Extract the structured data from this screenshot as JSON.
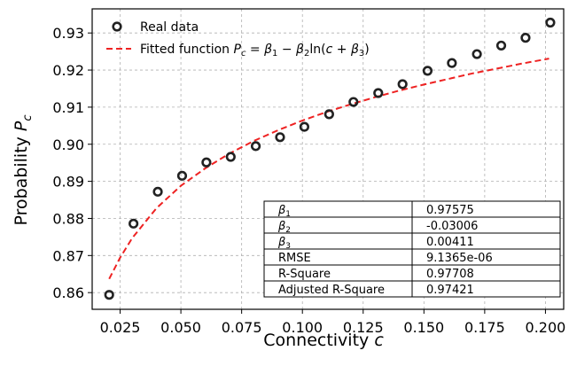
{
  "chart_data": {
    "type": "scatter",
    "xlabel": {
      "text": "Connectivity ",
      "var": "c"
    },
    "ylabel": {
      "text": "Probability ",
      "var": "P",
      "sub": "c"
    },
    "xlim": [
      0.0135,
      0.2075
    ],
    "ylim": [
      0.8555,
      0.9365
    ],
    "xticks": [
      0.025,
      0.05,
      0.075,
      0.1,
      0.125,
      0.15,
      0.175,
      0.2
    ],
    "xtick_labels": [
      "0.025",
      "0.050",
      "0.075",
      "0.100",
      "0.125",
      "0.150",
      "0.175",
      "0.200"
    ],
    "yticks": [
      0.86,
      0.87,
      0.88,
      0.89,
      0.9,
      0.91,
      0.92,
      0.93
    ],
    "ytick_labels": [
      "0.86",
      "0.87",
      "0.88",
      "0.89",
      "0.90",
      "0.91",
      "0.92",
      "0.93"
    ],
    "grid": true,
    "legend_position": "top-left",
    "series": [
      {
        "name": "Real data",
        "kind": "scatter",
        "marker": "open-circle",
        "color": "#222222",
        "x": [
          0.0205,
          0.0305,
          0.0405,
          0.0505,
          0.0605,
          0.0705,
          0.0808,
          0.0908,
          0.1008,
          0.111,
          0.121,
          0.1312,
          0.1412,
          0.1515,
          0.1615,
          0.1718,
          0.1818,
          0.1918,
          0.202
        ],
        "y": [
          0.8594,
          0.8786,
          0.8872,
          0.8915,
          0.8951,
          0.8966,
          0.8995,
          0.9019,
          0.9047,
          0.9081,
          0.9114,
          0.9138,
          0.9162,
          0.9198,
          0.9219,
          0.9243,
          0.9266,
          0.9287,
          0.9328
        ]
      },
      {
        "name": "Fitted function",
        "kind": "line",
        "style": "dashed",
        "color": "#ee2222",
        "x": [
          0.0205,
          0.025,
          0.03,
          0.04,
          0.05,
          0.06,
          0.07,
          0.08,
          0.09,
          0.1,
          0.11,
          0.12,
          0.13,
          0.14,
          0.15,
          0.16,
          0.17,
          0.18,
          0.19,
          0.2,
          0.2015
        ],
        "y": [
          0.8637,
          0.8694,
          0.8747,
          0.8828,
          0.8888,
          0.8935,
          0.8975,
          0.9009,
          0.9038,
          0.9064,
          0.9087,
          0.9108,
          0.9127,
          0.9145,
          0.9161,
          0.9176,
          0.9191,
          0.9204,
          0.9217,
          0.9229,
          0.9231
        ]
      }
    ],
    "legend": {
      "entries": [
        {
          "label": "Real data"
        },
        {
          "label": "Fitted function",
          "formula": {
            "lhs": "P",
            "lhs_sub": "c",
            "eq": " = ",
            "b1": "β",
            "b1_sub": "1",
            "minus": " − ",
            "b2": "β",
            "b2_sub": "2",
            "ln": "ln(",
            "c": "c",
            "plus": " + ",
            "b3": "β",
            "b3_sub": "3",
            "close": ")"
          }
        }
      ]
    },
    "table": {
      "rows": [
        {
          "name": "β",
          "sub": "1",
          "value": "0.97575"
        },
        {
          "name": "β",
          "sub": "2",
          "value": "-0.03006"
        },
        {
          "name": "β",
          "sub": "3",
          "value": "0.00411"
        },
        {
          "name": "RMSE",
          "sub": "",
          "value": "9.1365e-06"
        },
        {
          "name": "R-Square",
          "sub": "",
          "value": "0.97708"
        },
        {
          "name": "Adjusted R-Square",
          "sub": "",
          "value": "0.97421"
        }
      ]
    }
  }
}
